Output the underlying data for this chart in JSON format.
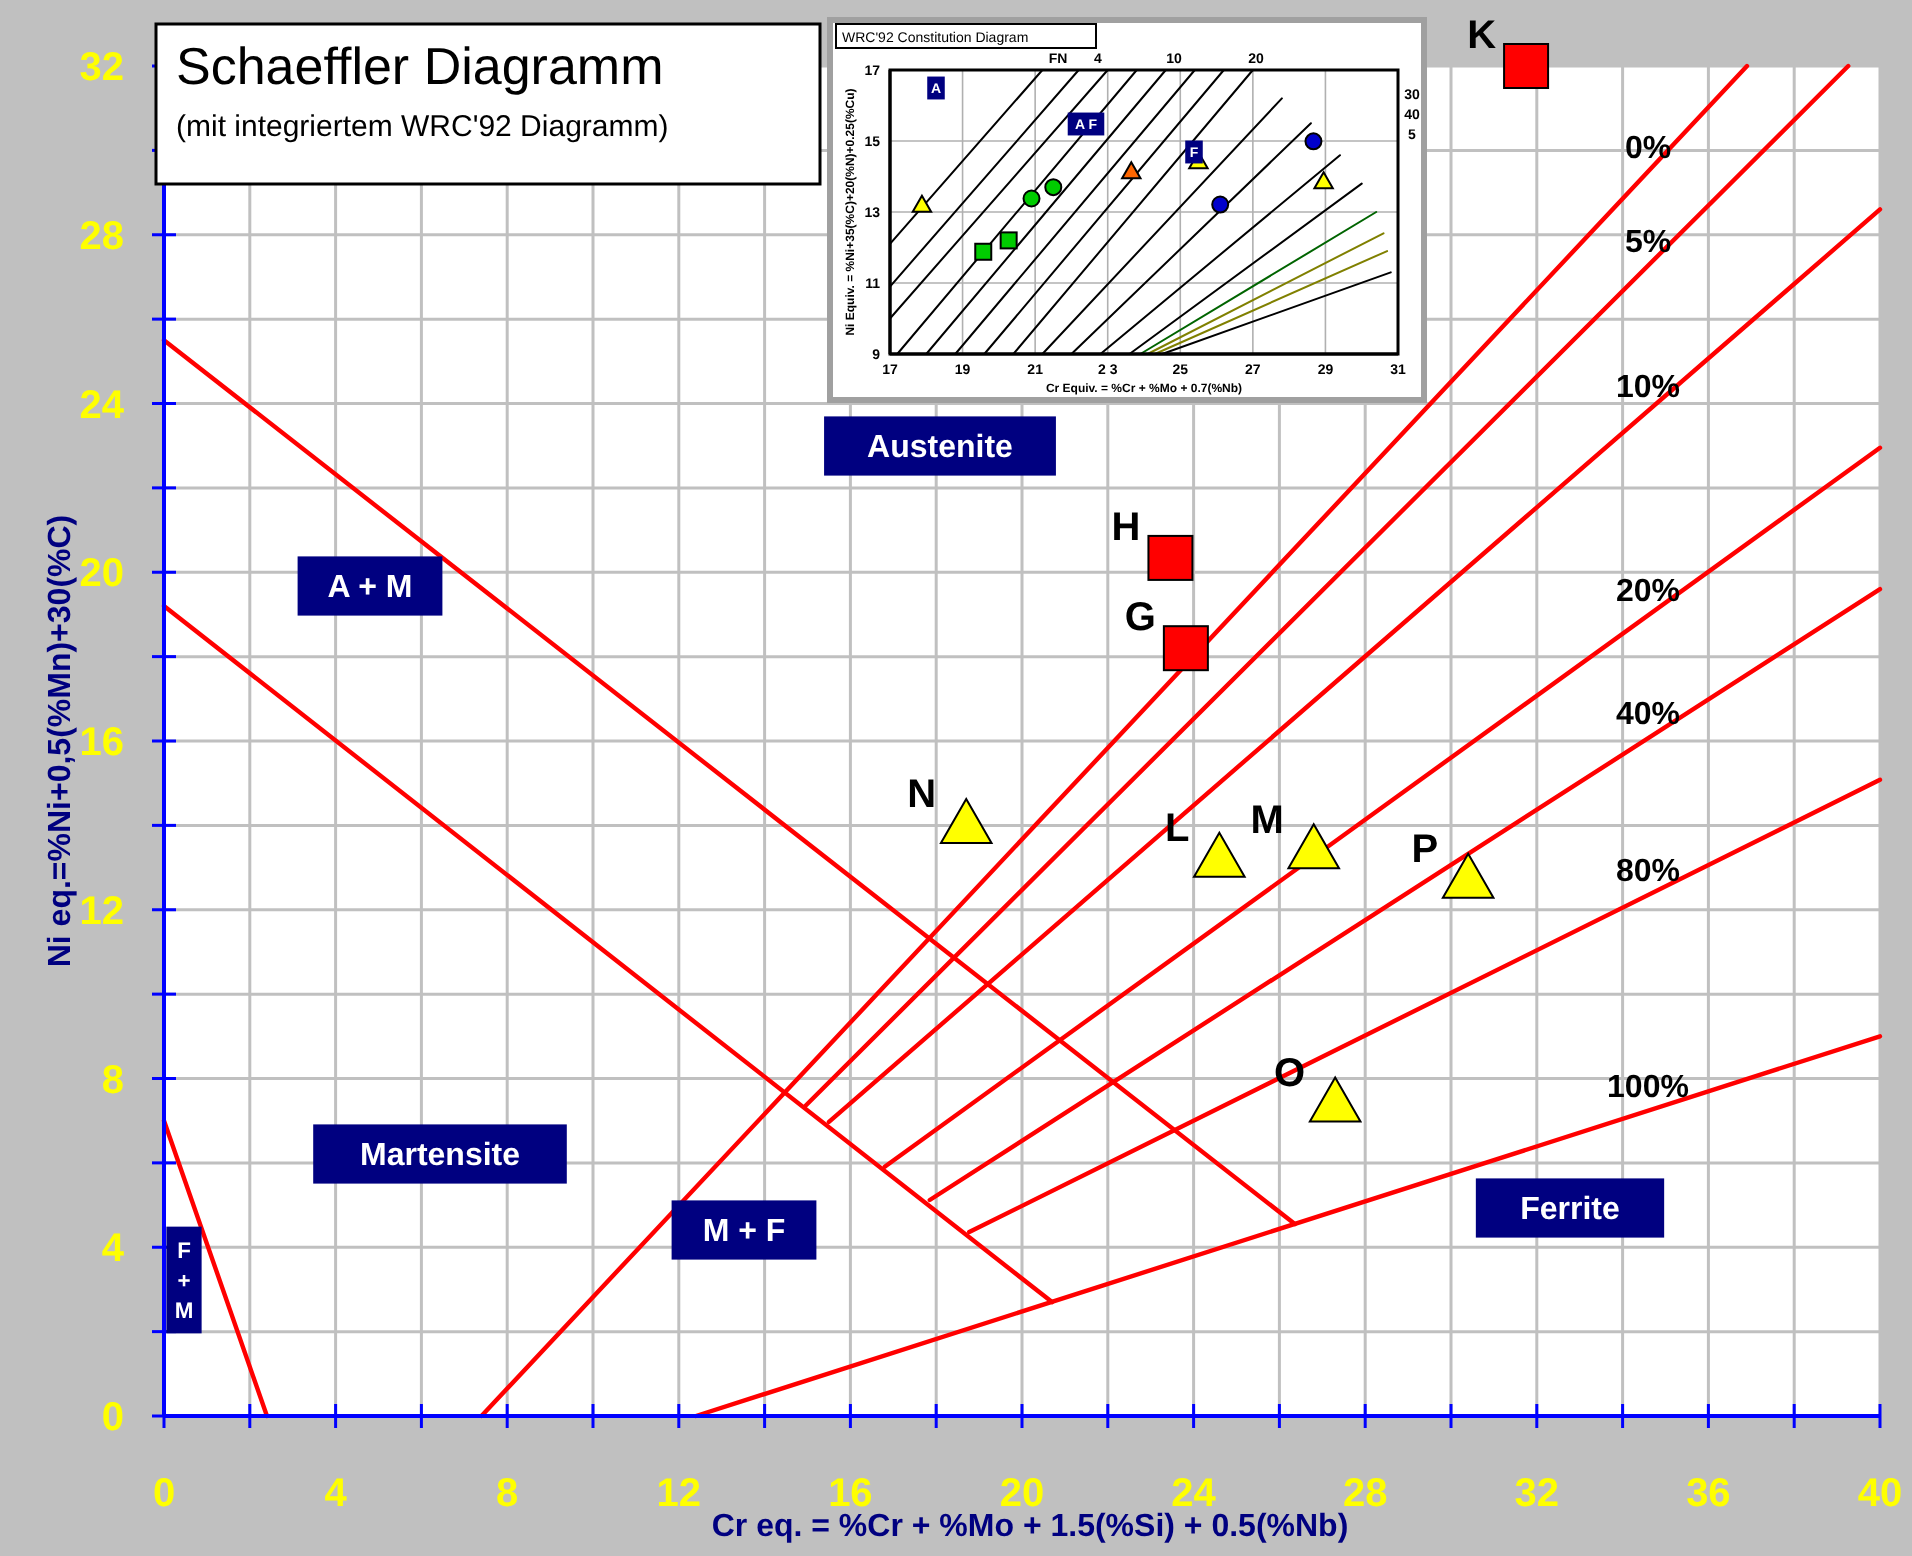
{
  "chart_data": [
    {
      "type": "line",
      "title": "Schaeffler Diagramm",
      "subtitle": "(mit integriertem WRC'92 Diagramm)",
      "xlabel": "Cr eq. = %Cr + %Mo + 1.5(%Si) + 0.5(%Nb)",
      "ylabel": "Ni eq.=%Ni+0,5(%Mn)+30(%C)",
      "xlim": [
        0,
        40
      ],
      "ylim": [
        0,
        32
      ],
      "xticks": [
        0,
        {
          "value": 2,
          "label": null
        },
        4,
        {
          "value": 6,
          "label": null
        },
        8,
        {
          "value": 10,
          "label": null
        },
        12,
        {
          "value": 14,
          "label": null
        },
        16,
        {
          "value": 18,
          "label": null
        },
        20,
        {
          "value": 22,
          "label": null
        },
        24,
        {
          "value": 26,
          "label": null
        },
        28,
        {
          "value": 30,
          "label": null
        },
        32,
        {
          "value": 34,
          "label": null
        },
        36,
        {
          "value": 38,
          "label": null
        },
        40
      ],
      "yticks": [
        0,
        {
          "value": 2,
          "label": null
        },
        4,
        {
          "value": 6,
          "label": null
        },
        8,
        {
          "value": 10,
          "label": null
        },
        12,
        {
          "value": 14,
          "label": null
        },
        16,
        {
          "value": 18,
          "label": null
        },
        20,
        {
          "value": 22,
          "label": null
        },
        24,
        {
          "value": 26,
          "label": null
        },
        28,
        {
          "value": 30,
          "label": null
        },
        32
      ],
      "grid": true,
      "series": [
        {
          "type": "line",
          "color": "#ff0000",
          "x": [
            0,
            26.36
          ],
          "values": [
            25.5,
            4.55
          ]
        },
        {
          "type": "line",
          "color": "#ff0000",
          "x": [
            0,
            20.7
          ],
          "values": [
            19.2,
            2.7
          ]
        },
        {
          "type": "line",
          "color": "#ff0000",
          "x": [
            0,
            2.4
          ],
          "values": [
            7,
            0
          ]
        },
        {
          "type": "line",
          "name": "0%",
          "color": "#ff0000",
          "x": [
            7.4,
            36.9
          ],
          "values": [
            0,
            32
          ]
        },
        {
          "type": "line",
          "name": "100%",
          "color": "#ff0000",
          "x": [
            12.4,
            40
          ],
          "values": [
            0,
            9
          ]
        },
        {
          "type": "line",
          "name": "5%",
          "color": "#ff0000",
          "x": [
            14.96,
            39.26
          ],
          "values": [
            7.36,
            32
          ]
        },
        {
          "type": "line",
          "name": "10%",
          "color": "#ff0000",
          "x": [
            15.5,
            40
          ],
          "values": [
            6.97,
            28.6
          ]
        },
        {
          "type": "line",
          "name": "20%",
          "color": "#ff0000",
          "x": [
            16.8,
            40
          ],
          "values": [
            5.91,
            22.95
          ]
        },
        {
          "type": "line",
          "name": "40%",
          "color": "#ff0000",
          "x": [
            17.85,
            40
          ],
          "values": [
            5.12,
            19.6
          ]
        },
        {
          "type": "line",
          "name": "80%",
          "color": "#ff0000",
          "x": [
            18.77,
            40
          ],
          "values": [
            4.36,
            15.08
          ]
        },
        {
          "type": "scatter",
          "name": "K",
          "marker": "square",
          "color": "#ff0000",
          "x": [
            31.75
          ],
          "values": [
            32
          ]
        },
        {
          "type": "scatter",
          "name": "H",
          "marker": "square",
          "color": "#ff0000",
          "x": [
            23.46
          ],
          "values": [
            20.34
          ]
        },
        {
          "type": "scatter",
          "name": "G",
          "marker": "square",
          "color": "#ff0000",
          "x": [
            23.82
          ],
          "values": [
            18.2
          ]
        },
        {
          "type": "scatter",
          "name": "N",
          "marker": "triangle",
          "color": "#ffff00",
          "x": [
            18.7
          ],
          "values": [
            14.0
          ]
        },
        {
          "type": "scatter",
          "name": "L",
          "marker": "triangle",
          "color": "#ffff00",
          "x": [
            24.6
          ],
          "values": [
            13.2
          ]
        },
        {
          "type": "scatter",
          "name": "M",
          "marker": "triangle",
          "color": "#ffff00",
          "x": [
            26.8
          ],
          "values": [
            13.4
          ]
        },
        {
          "type": "scatter",
          "name": "P",
          "marker": "triangle",
          "color": "#ffff00",
          "x": [
            30.4
          ],
          "values": [
            12.7
          ]
        },
        {
          "type": "scatter",
          "name": "O",
          "marker": "triangle",
          "color": "#ffff00",
          "x": [
            27.3
          ],
          "values": [
            7.4
          ]
        }
      ],
      "annotations": [
        "Austenite",
        "A + M",
        "Martensite",
        "M + F",
        "Ferrite",
        "F + M"
      ]
    },
    {
      "type": "line",
      "title": "WRC'92 Constitution Diagram",
      "xlabel": "Cr Equiv. = %Cr + %Mo + 0.7(%Nb)",
      "ylabel": "Ni Equiv. = %Ni+35(%C)+20(%N)+0.25(%Cu)",
      "xlim": [
        17,
        31
      ],
      "ylim": [
        9,
        17
      ],
      "xticks": [
        17,
        19,
        21,
        {
          "value": 23,
          "label": "2 3"
        },
        25,
        27,
        29,
        31
      ],
      "yticks": [
        9,
        11,
        13,
        15,
        17
      ],
      "grid": true,
      "series": [
        {
          "type": "line",
          "color": "#000000",
          "x": [
            17,
            21.2
          ],
          "values": [
            12.1,
            17
          ]
        },
        {
          "type": "line",
          "color": "#000000",
          "x": [
            17,
            22.2
          ],
          "values": [
            10.9,
            17
          ]
        },
        {
          "type": "line",
          "color": "#000000",
          "x": [
            17,
            23.0
          ],
          "values": [
            10.0,
            17
          ]
        },
        {
          "type": "line",
          "color": "#000000",
          "x": [
            17.2,
            23.8
          ],
          "values": [
            9,
            17
          ]
        },
        {
          "type": "line",
          "color": "#000000",
          "x": [
            18.0,
            24.6
          ],
          "values": [
            9,
            17
          ]
        },
        {
          "type": "line",
          "color": "#000000",
          "x": [
            18.8,
            25.4
          ],
          "values": [
            9,
            17
          ]
        },
        {
          "type": "line",
          "color": "#000000",
          "x": [
            19.6,
            26.2
          ],
          "values": [
            9,
            17
          ]
        },
        {
          "type": "line",
          "color": "#000000",
          "x": [
            20.4,
            27.0
          ],
          "values": [
            9,
            17
          ]
        },
        {
          "type": "line",
          "color": "#000000",
          "x": [
            21.2,
            27.8
          ],
          "values": [
            9,
            16.2
          ]
        },
        {
          "type": "line",
          "color": "#000000",
          "x": [
            22.0,
            28.6
          ],
          "values": [
            9,
            15.5
          ]
        },
        {
          "type": "line",
          "color": "#000000",
          "x": [
            22.8,
            29.4
          ],
          "values": [
            9,
            14.6
          ]
        },
        {
          "type": "line",
          "color": "#000000",
          "x": [
            23.6,
            30.0
          ],
          "values": [
            9,
            13.8
          ]
        },
        {
          "type": "line",
          "color": "#006400",
          "x": [
            23.9,
            30.4
          ],
          "values": [
            9,
            13.0
          ]
        },
        {
          "type": "line",
          "color": "#808000",
          "x": [
            24.1,
            30.6
          ],
          "values": [
            9,
            12.4
          ]
        },
        {
          "type": "line",
          "color": "#808000",
          "x": [
            24.3,
            30.7
          ],
          "values": [
            9,
            11.9
          ]
        },
        {
          "type": "line",
          "color": "#000000",
          "x": [
            24.5,
            30.8
          ],
          "values": [
            9,
            11.3
          ]
        },
        {
          "type": "scatter",
          "marker": "triangle",
          "color": "#ffff00",
          "x": [
            17.88,
            25.5,
            28.95
          ],
          "values": [
            13.19,
            14.41,
            13.85
          ]
        },
        {
          "type": "scatter",
          "marker": "square",
          "color": "#00cc00",
          "x": [
            19.57,
            20.27
          ],
          "values": [
            11.88,
            12.2
          ]
        },
        {
          "type": "scatter",
          "marker": "circle",
          "color": "#00cc00",
          "x": [
            20.9,
            21.5
          ],
          "values": [
            13.38,
            13.7
          ]
        },
        {
          "type": "scatter",
          "marker": "triangle",
          "color": "#ff6600",
          "x": [
            23.65
          ],
          "values": [
            14.13
          ]
        },
        {
          "type": "scatter",
          "marker": "circle",
          "color": "#0000cc",
          "x": [
            26.1,
            28.67
          ],
          "values": [
            13.21,
            14.99
          ]
        }
      ],
      "annotations": [
        "FN",
        "4",
        "10",
        "20",
        "30",
        "40",
        "5",
        "A",
        "A F",
        "F"
      ]
    }
  ]
}
